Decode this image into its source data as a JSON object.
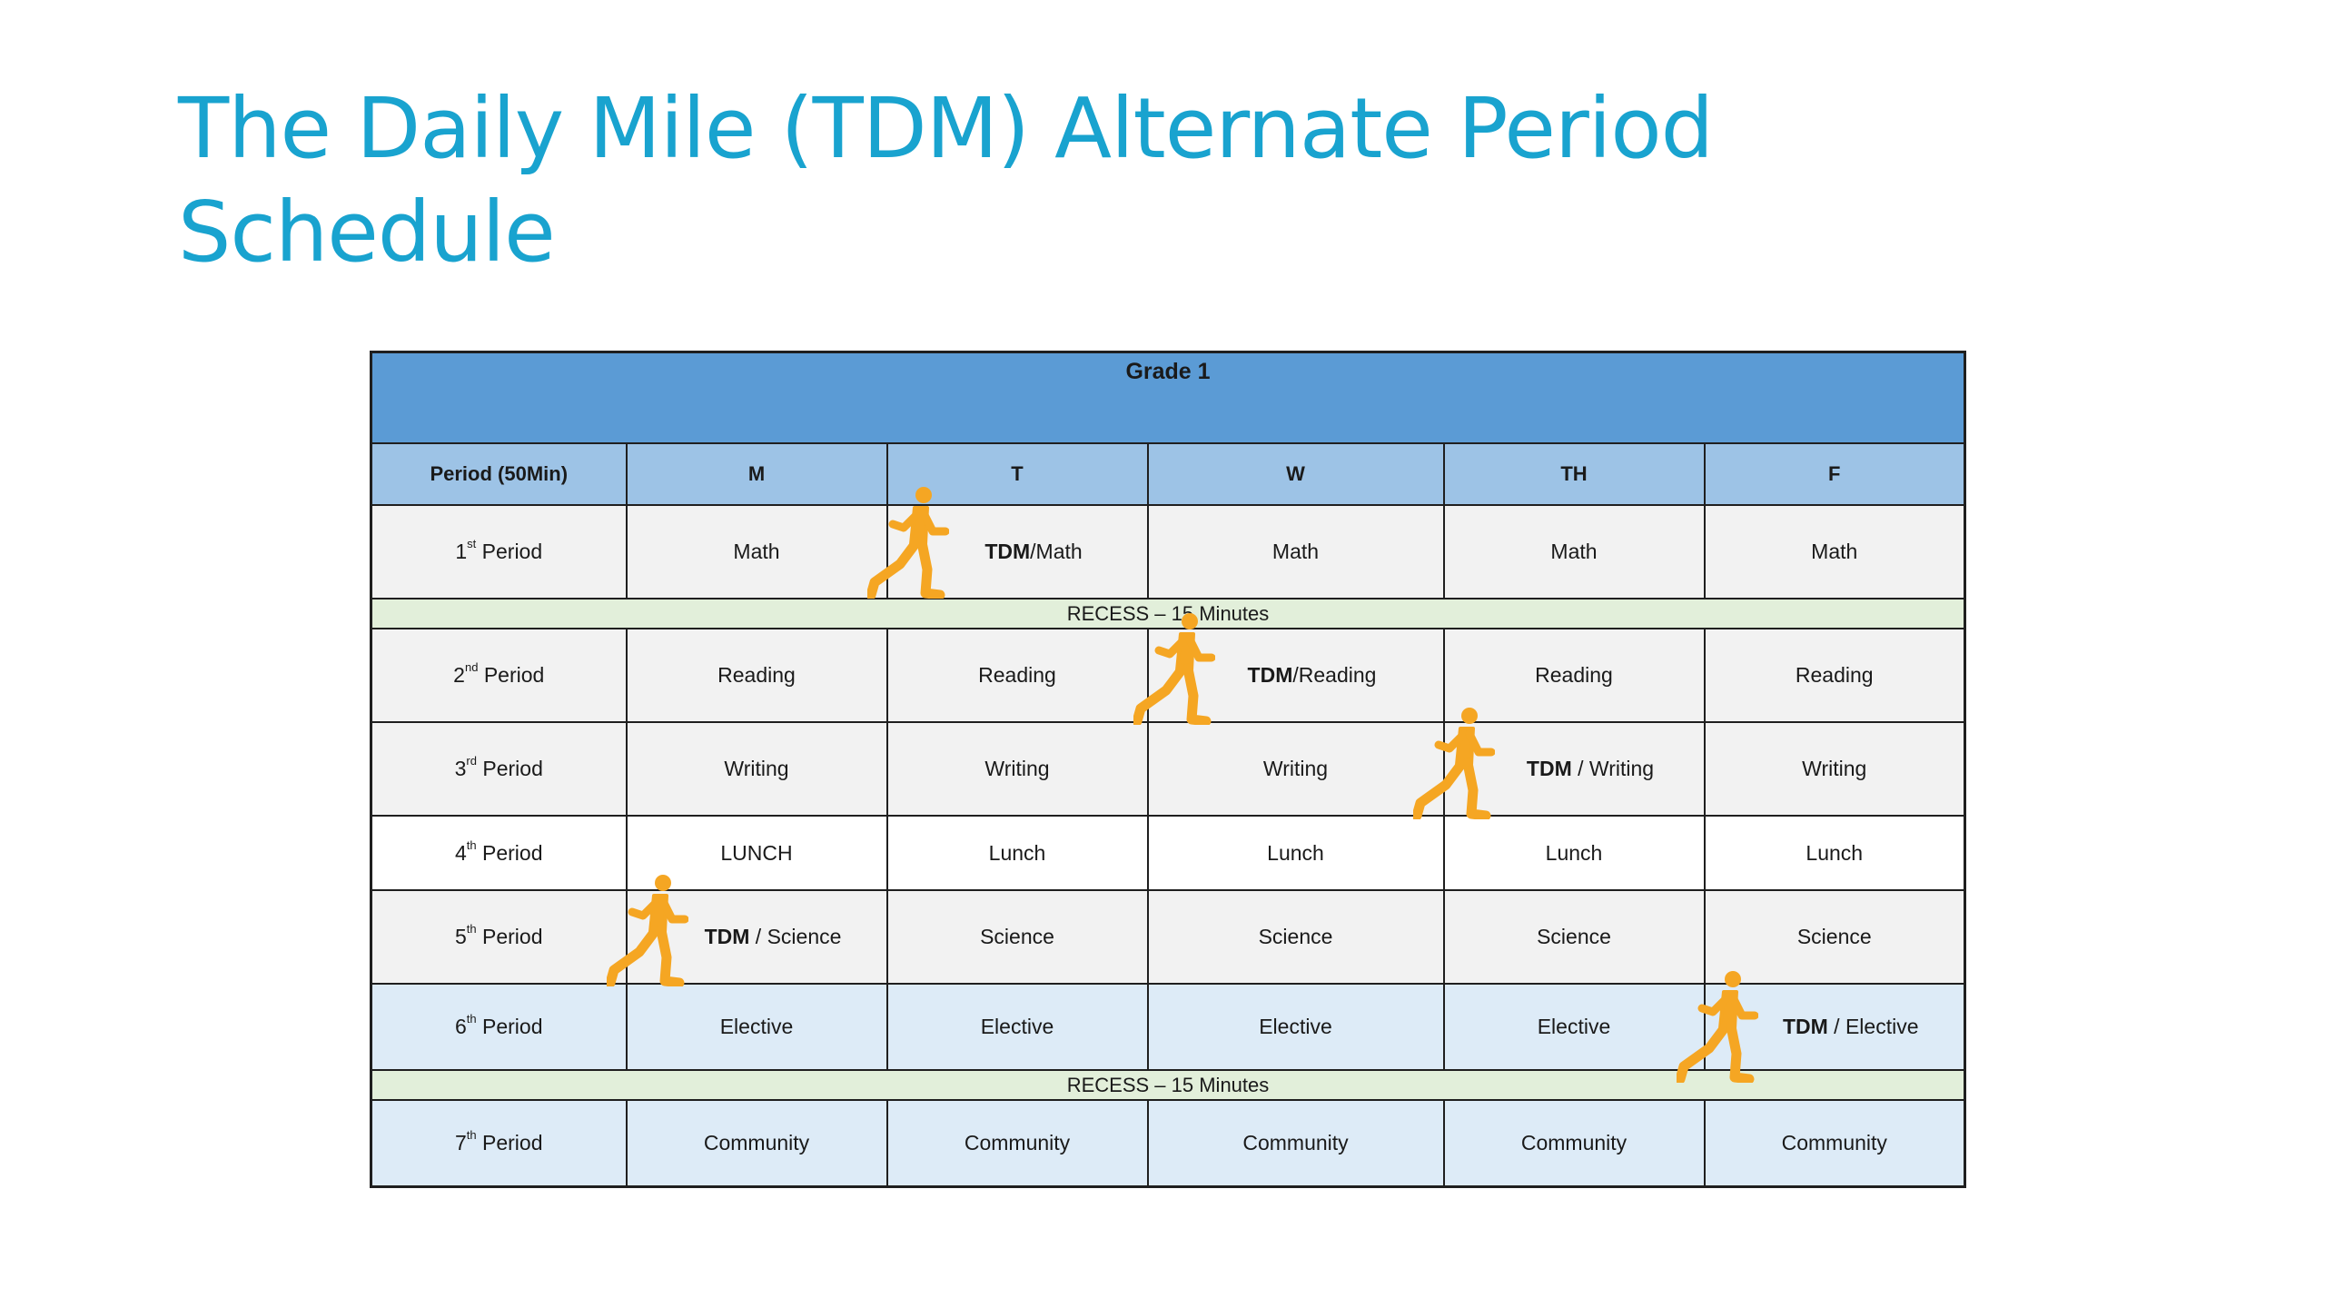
{
  "title_lines": [
    "The Daily Mile (TDM) Alternate Period",
    "Schedule"
  ],
  "table": {
    "grade": "Grade 1",
    "headers": [
      "Period (50Min)",
      "M",
      "T",
      "W",
      "TH",
      "F"
    ],
    "periods": [
      {
        "num": "1",
        "sup": "st",
        "label": "Period",
        "cells": [
          "Math",
          "TDM|/Math",
          "Math",
          "Math",
          "Math"
        ]
      },
      {
        "num": "2",
        "sup": "nd",
        "label": "Period",
        "cells": [
          "Reading",
          "Reading",
          "TDM|/Reading",
          "Reading",
          "Reading"
        ]
      },
      {
        "num": "3",
        "sup": "rd",
        "label": "Period",
        "cells": [
          "Writing",
          "Writing",
          "Writing",
          "TDM| / Writing",
          "Writing"
        ]
      },
      {
        "num": "4",
        "sup": "th",
        "label": "Period",
        "cells": [
          "LUNCH",
          "Lunch",
          "Lunch",
          "Lunch",
          "Lunch"
        ]
      },
      {
        "num": "5",
        "sup": "th",
        "label": "Period",
        "cells": [
          "TDM| / Science",
          "Science",
          "Science",
          "Science",
          "Science"
        ]
      },
      {
        "num": "6",
        "sup": "th",
        "label": "Period",
        "cells": [
          "Elective",
          "Elective",
          "Elective",
          "Elective",
          "TDM| / Elective"
        ]
      },
      {
        "num": "7",
        "sup": "th",
        "label": "Period",
        "cells": [
          "Community",
          "Community",
          "Community",
          "Community",
          "Community"
        ]
      }
    ],
    "recess_label": "RECESS – 15 Minutes"
  },
  "colors": {
    "title": "#19a3cf",
    "grade_header": "#5b9bd5",
    "column_header": "#9dc3e6",
    "recess": "#e2efda",
    "runner": "#f5a623"
  },
  "icons": [
    "runner-icon"
  ]
}
